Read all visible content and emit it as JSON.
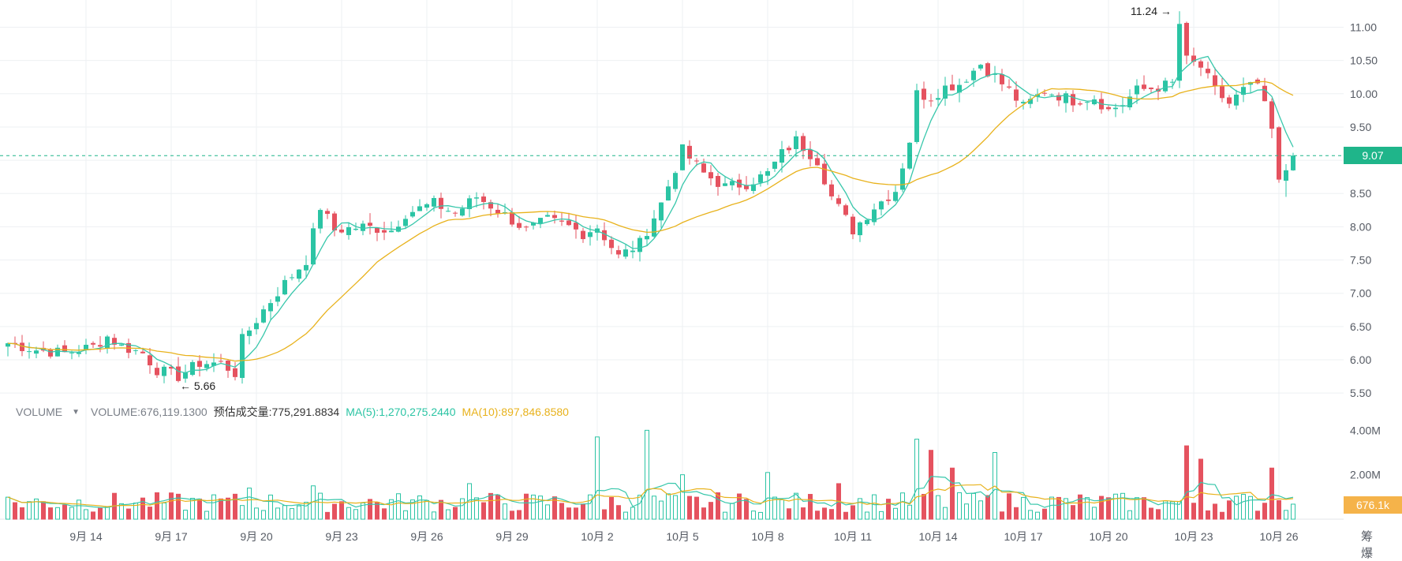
{
  "chart_data": {
    "type": "candlestick",
    "title": "",
    "price_axis": {
      "ticks": [
        "11.00",
        "10.50",
        "10.00",
        "9.50",
        "9.00",
        "8.50",
        "8.00",
        "7.50",
        "7.00",
        "6.50",
        "6.00",
        "5.50"
      ],
      "ylim": [
        5.3,
        11.35
      ]
    },
    "volume_axis": {
      "ticks": [
        "4.00M",
        "2.00M"
      ],
      "ylim": [
        0,
        4.9
      ]
    },
    "x_ticks": [
      {
        "label": "9月 14",
        "index": 11
      },
      {
        "label": "9月 17",
        "index": 23
      },
      {
        "label": "9月 20",
        "index": 35
      },
      {
        "label": "9月 23",
        "index": 47
      },
      {
        "label": "9月 26",
        "index": 59
      },
      {
        "label": "9月 29",
        "index": 71
      },
      {
        "label": "10月 2",
        "index": 83
      },
      {
        "label": "10月 5",
        "index": 95
      },
      {
        "label": "10月 8",
        "index": 107
      },
      {
        "label": "10月 11",
        "index": 119
      },
      {
        "label": "10月 14",
        "index": 131
      },
      {
        "label": "10月 17",
        "index": 143
      },
      {
        "label": "10月 20",
        "index": 155
      },
      {
        "label": "10月 23",
        "index": 167
      },
      {
        "label": "10月 26",
        "index": 179
      }
    ],
    "close_anchors": [
      [
        0,
        6.25
      ],
      [
        4,
        6.15
      ],
      [
        8,
        6.1
      ],
      [
        12,
        6.2
      ],
      [
        14,
        6.35
      ],
      [
        16,
        6.2
      ],
      [
        19,
        6.1
      ],
      [
        21,
        5.85
      ],
      [
        24,
        5.75
      ],
      [
        27,
        5.95
      ],
      [
        30,
        5.95
      ],
      [
        32,
        5.8
      ],
      [
        33,
        6.3
      ],
      [
        36,
        6.75
      ],
      [
        39,
        7.15
      ],
      [
        42,
        7.5
      ],
      [
        44,
        8.3
      ],
      [
        46,
        7.95
      ],
      [
        50,
        8.0
      ],
      [
        54,
        7.95
      ],
      [
        56,
        8.2
      ],
      [
        60,
        8.35
      ],
      [
        63,
        8.2
      ],
      [
        66,
        8.45
      ],
      [
        69,
        8.25
      ],
      [
        73,
        7.95
      ],
      [
        76,
        8.1
      ],
      [
        79,
        8.0
      ],
      [
        81,
        7.9
      ],
      [
        83,
        8.0
      ],
      [
        86,
        7.55
      ],
      [
        89,
        7.75
      ],
      [
        92,
        8.35
      ],
      [
        95,
        9.15
      ],
      [
        98,
        8.8
      ],
      [
        101,
        8.6
      ],
      [
        104,
        8.65
      ],
      [
        107,
        8.8
      ],
      [
        109,
        9.1
      ],
      [
        111,
        9.3
      ],
      [
        114,
        9.0
      ],
      [
        116,
        8.45
      ],
      [
        119,
        7.95
      ],
      [
        122,
        8.3
      ],
      [
        125,
        8.55
      ],
      [
        127,
        9.3
      ],
      [
        128,
        10.0
      ],
      [
        130,
        9.95
      ],
      [
        132,
        10.1
      ],
      [
        134,
        10.15
      ],
      [
        137,
        10.45
      ],
      [
        141,
        10.05
      ],
      [
        143,
        9.8
      ],
      [
        146,
        10.05
      ],
      [
        150,
        9.9
      ],
      [
        153,
        9.95
      ],
      [
        155,
        9.75
      ],
      [
        157,
        9.85
      ],
      [
        159,
        10.05
      ],
      [
        162,
        10.1
      ],
      [
        164,
        10.15
      ],
      [
        165,
        11.05
      ],
      [
        166,
        10.5
      ],
      [
        168,
        10.4
      ],
      [
        170,
        10.05
      ],
      [
        172,
        9.85
      ],
      [
        174,
        10.05
      ],
      [
        176,
        10.15
      ],
      [
        178,
        9.45
      ],
      [
        179,
        8.65
      ],
      [
        181,
        9.07
      ]
    ],
    "ma_fast_label": "MA(5)",
    "ma_slow_label": "MA(10)",
    "high_marker": {
      "value": "11.24",
      "index": 165
    },
    "low_marker": {
      "value": "5.66",
      "index": 24
    },
    "last_price": 9.07,
    "last_price_label": "9.07",
    "volume_spikes": [
      [
        83,
        3.7
      ],
      [
        90,
        4.0
      ],
      [
        65,
        1.6
      ],
      [
        34,
        1.4
      ],
      [
        43,
        1.5
      ],
      [
        128,
        3.6
      ],
      [
        130,
        3.1
      ],
      [
        139,
        3.0
      ],
      [
        133,
        2.3
      ],
      [
        166,
        3.3
      ],
      [
        168,
        2.7
      ],
      [
        178,
        2.3
      ],
      [
        95,
        2.0
      ],
      [
        107,
        2.1
      ],
      [
        117,
        1.6
      ]
    ],
    "last_volume": 0.676
  },
  "volume_legend": {
    "name": "VOLUME",
    "volume": "VOLUME:676,119.1300",
    "estimate": "预估成交量:775,291.8834",
    "ma5": "MA(5):1,270,275.2440",
    "ma10": "MA(10):897,846.8580"
  },
  "badges": {
    "last_price": "9.07",
    "last_volume": "676.1k"
  },
  "markers": {
    "high": "11.24 →",
    "low": "← 5.66"
  },
  "corner_controls": "筹 爆",
  "colors": {
    "up": "#2bc4a4",
    "down": "#e5525f",
    "ma_fast": "#38c7ab",
    "ma_slow": "#e8b21c",
    "grid": "#eef0f3",
    "last_line": "#1fb58a"
  }
}
